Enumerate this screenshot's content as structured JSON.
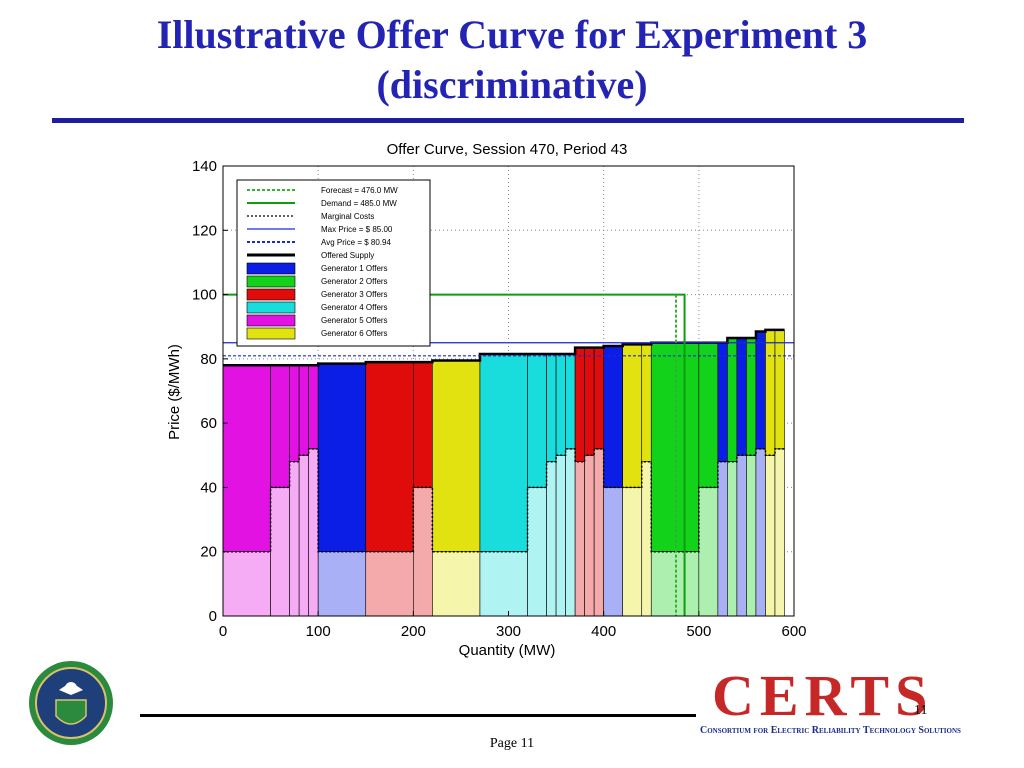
{
  "slide": {
    "title_line1": "Illustrative Offer Curve for Experiment 3",
    "title_line2": "(discriminative)",
    "page_label": "Page 11",
    "slide_number": "11",
    "logo_text": "CERTS",
    "logo_subtitle": "Consortium for Electric Reliability Technology Solutions"
  },
  "colors": {
    "title": "#2424b4",
    "gen1": "#0a1ee6",
    "gen2": "#12d21a",
    "gen3": "#e00b0b",
    "gen4": "#19dcdc",
    "gen5": "#e213e2",
    "gen6": "#e2e210",
    "demand": "#0c9e0c",
    "forecast": "#35b035",
    "max_price": "#1a2ad0",
    "avg_price": "#1a2ad0"
  },
  "chart_data": {
    "type": "bar",
    "title": "Offer Curve, Session 470, Period 43",
    "xlabel": "Quantity (MW)",
    "ylabel": "Price ($/MWh)",
    "xlim": [
      0,
      600
    ],
    "ylim": [
      0,
      140
    ],
    "xticks": [
      0,
      100,
      200,
      300,
      400,
      500,
      600
    ],
    "yticks": [
      0,
      20,
      40,
      60,
      80,
      100,
      120,
      140
    ],
    "grid": true,
    "legend_position": "top-left",
    "legend": [
      {
        "label": "Forecast = 476.0 MW",
        "kind": "dashed",
        "color": "#35b035"
      },
      {
        "label": "Demand = 485.0 MW",
        "kind": "solid",
        "color": "#0c9e0c"
      },
      {
        "label": "Marginal Costs",
        "kind": "dotted",
        "color": "#000000"
      },
      {
        "label": "Max Price = $ 85.00",
        "kind": "solid",
        "color": "#1a2ad0"
      },
      {
        "label": "Avg Price = $ 80.94",
        "kind": "dashed",
        "color": "#1a2ad0"
      },
      {
        "label": "Offered Supply",
        "kind": "thick",
        "color": "#000000"
      },
      {
        "label": "Generator 1 Offers",
        "kind": "box",
        "color": "#0a1ee6"
      },
      {
        "label": "Generator 2 Offers",
        "kind": "box",
        "color": "#12d21a"
      },
      {
        "label": "Generator 3 Offers",
        "kind": "box",
        "color": "#e00b0b"
      },
      {
        "label": "Generator 4 Offers",
        "kind": "box",
        "color": "#19dcdc"
      },
      {
        "label": "Generator 5 Offers",
        "kind": "box",
        "color": "#e213e2"
      },
      {
        "label": "Generator 6 Offers",
        "kind": "box",
        "color": "#e2e210"
      }
    ],
    "reference_lines": {
      "forecast_mw": 476,
      "demand_mw": 485,
      "demand_price_cap": 100,
      "max_price": 85,
      "avg_price": 80.94
    },
    "offers": [
      {
        "gen": 5,
        "x0": 0,
        "x1": 50,
        "price": 78,
        "cost": 20
      },
      {
        "gen": 5,
        "x0": 50,
        "x1": 70,
        "price": 78,
        "cost": 40
      },
      {
        "gen": 5,
        "x0": 70,
        "x1": 80,
        "price": 78,
        "cost": 48
      },
      {
        "gen": 5,
        "x0": 80,
        "x1": 90,
        "price": 78,
        "cost": 50
      },
      {
        "gen": 5,
        "x0": 90,
        "x1": 100,
        "price": 78,
        "cost": 52
      },
      {
        "gen": 1,
        "x0": 100,
        "x1": 150,
        "price": 78.5,
        "cost": 20
      },
      {
        "gen": 3,
        "x0": 150,
        "x1": 200,
        "price": 79,
        "cost": 20
      },
      {
        "gen": 3,
        "x0": 200,
        "x1": 220,
        "price": 79,
        "cost": 40
      },
      {
        "gen": 6,
        "x0": 220,
        "x1": 270,
        "price": 79.5,
        "cost": 20
      },
      {
        "gen": 4,
        "x0": 270,
        "x1": 320,
        "price": 81.5,
        "cost": 20
      },
      {
        "gen": 4,
        "x0": 320,
        "x1": 340,
        "price": 81.5,
        "cost": 40
      },
      {
        "gen": 4,
        "x0": 340,
        "x1": 350,
        "price": 81.5,
        "cost": 48
      },
      {
        "gen": 4,
        "x0": 350,
        "x1": 360,
        "price": 81.5,
        "cost": 50
      },
      {
        "gen": 4,
        "x0": 360,
        "x1": 370,
        "price": 81.5,
        "cost": 52
      },
      {
        "gen": 3,
        "x0": 370,
        "x1": 380,
        "price": 83.5,
        "cost": 48
      },
      {
        "gen": 3,
        "x0": 380,
        "x1": 390,
        "price": 83.5,
        "cost": 50
      },
      {
        "gen": 3,
        "x0": 390,
        "x1": 400,
        "price": 83.5,
        "cost": 52
      },
      {
        "gen": 1,
        "x0": 400,
        "x1": 420,
        "price": 84,
        "cost": 40
      },
      {
        "gen": 6,
        "x0": 420,
        "x1": 440,
        "price": 84.5,
        "cost": 40
      },
      {
        "gen": 6,
        "x0": 440,
        "x1": 450,
        "price": 84.5,
        "cost": 48
      },
      {
        "gen": 2,
        "x0": 450,
        "x1": 500,
        "price": 85,
        "cost": 20
      },
      {
        "gen": 2,
        "x0": 500,
        "x1": 520,
        "price": 85,
        "cost": 40
      },
      {
        "gen": 1,
        "x0": 520,
        "x1": 530,
        "price": 85,
        "cost": 48
      },
      {
        "gen": 2,
        "x0": 530,
        "x1": 540,
        "price": 86.5,
        "cost": 48
      },
      {
        "gen": 1,
        "x0": 540,
        "x1": 550,
        "price": 86.5,
        "cost": 50
      },
      {
        "gen": 2,
        "x0": 550,
        "x1": 560,
        "price": 86.5,
        "cost": 50
      },
      {
        "gen": 1,
        "x0": 560,
        "x1": 570,
        "price": 88.5,
        "cost": 52
      },
      {
        "gen": 6,
        "x0": 570,
        "x1": 580,
        "price": 89,
        "cost": 50
      },
      {
        "gen": 6,
        "x0": 580,
        "x1": 590,
        "price": 89,
        "cost": 52
      }
    ]
  }
}
